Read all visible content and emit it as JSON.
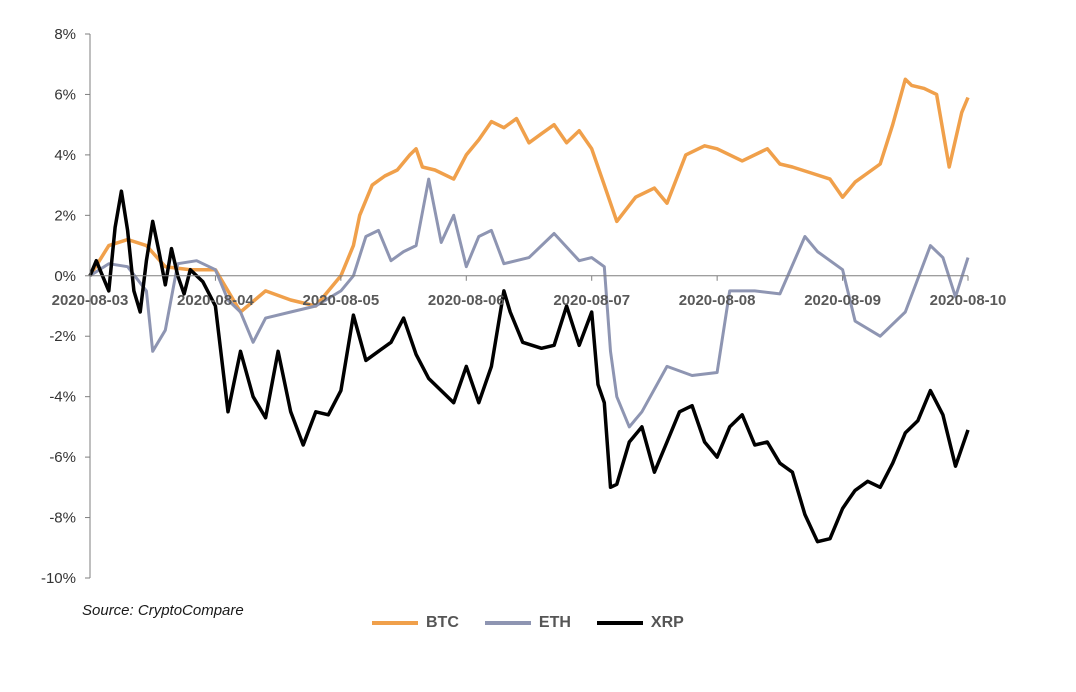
{
  "chart_data": {
    "type": "line",
    "source": "Source: CryptoCompare",
    "yticks": [
      "8%",
      "6%",
      "4%",
      "2%",
      "0%",
      "-2%",
      "-4%",
      "-6%",
      "-8%",
      "-10%"
    ],
    "ylim": [
      -10,
      8
    ],
    "x_ticks": [
      "2020-08-03",
      "2020-08-04",
      "2020-08-05",
      "2020-08-06",
      "2020-08-07",
      "2020-08-08",
      "2020-08-09",
      "2020-08-10"
    ],
    "x_range_days": [
      0,
      7
    ],
    "series": [
      {
        "name": "BTC",
        "color": "#f0a04b",
        "x": [
          0,
          0.15,
          0.3,
          0.45,
          0.6,
          0.8,
          1,
          1.2,
          1.4,
          1.6,
          1.8,
          2,
          2.1,
          2.15,
          2.25,
          2.35,
          2.45,
          2.55,
          2.6,
          2.65,
          2.75,
          2.9,
          3,
          3.1,
          3.2,
          3.3,
          3.4,
          3.5,
          3.6,
          3.7,
          3.8,
          3.9,
          4,
          4.1,
          4.2,
          4.35,
          4.5,
          4.6,
          4.75,
          4.9,
          5,
          5.2,
          5.4,
          5.5,
          5.6,
          5.75,
          5.9,
          6,
          6.1,
          6.2,
          6.3,
          6.4,
          6.5,
          6.55,
          6.65,
          6.75,
          6.85,
          6.95,
          7
        ],
        "y": [
          0,
          1.0,
          1.2,
          1.0,
          0.3,
          0.2,
          0.2,
          -1.2,
          -0.5,
          -0.8,
          -1.0,
          0,
          1.0,
          2.0,
          3.0,
          3.3,
          3.5,
          4.0,
          4.2,
          3.6,
          3.5,
          3.2,
          4.0,
          4.5,
          5.1,
          4.9,
          5.2,
          4.4,
          4.7,
          5.0,
          4.4,
          4.8,
          4.2,
          3.0,
          1.8,
          2.6,
          2.9,
          2.4,
          4.0,
          4.3,
          4.2,
          3.8,
          4.2,
          3.7,
          3.6,
          3.4,
          3.2,
          2.6,
          3.1,
          3.4,
          3.7,
          5.0,
          6.5,
          6.3,
          6.2,
          6.0,
          3.6,
          5.4,
          5.9
        ]
      },
      {
        "name": "ETH",
        "color": "#8e95b2",
        "x": [
          0,
          0.15,
          0.3,
          0.45,
          0.5,
          0.6,
          0.7,
          0.85,
          1,
          1.1,
          1.2,
          1.3,
          1.4,
          1.6,
          1.8,
          2,
          2.1,
          2.2,
          2.3,
          2.4,
          2.5,
          2.6,
          2.7,
          2.8,
          2.9,
          3,
          3.1,
          3.2,
          3.3,
          3.5,
          3.7,
          3.9,
          4,
          4.1,
          4.15,
          4.2,
          4.3,
          4.4,
          4.6,
          4.8,
          5,
          5.1,
          5.3,
          5.5,
          5.7,
          5.8,
          6,
          6.1,
          6.3,
          6.5,
          6.7,
          6.8,
          6.9,
          7
        ],
        "y": [
          0,
          0.4,
          0.3,
          -0.5,
          -2.5,
          -1.8,
          0.4,
          0.5,
          0.2,
          -0.8,
          -1.2,
          -2.2,
          -1.4,
          -1.2,
          -1.0,
          -0.5,
          0,
          1.3,
          1.5,
          0.5,
          0.8,
          1.0,
          3.2,
          1.1,
          2.0,
          0.3,
          1.3,
          1.5,
          0.4,
          0.6,
          1.4,
          0.5,
          0.6,
          0.3,
          -2.5,
          -4.0,
          -5.0,
          -4.5,
          -3.0,
          -3.3,
          -3.2,
          -0.5,
          -0.5,
          -0.6,
          1.3,
          0.8,
          0.2,
          -1.5,
          -2.0,
          -1.2,
          1.0,
          0.6,
          -0.7,
          0.6
        ]
      },
      {
        "name": "XRP",
        "color": "#000000",
        "x": [
          0,
          0.05,
          0.1,
          0.15,
          0.2,
          0.25,
          0.3,
          0.35,
          0.4,
          0.45,
          0.5,
          0.55,
          0.6,
          0.65,
          0.7,
          0.75,
          0.8,
          0.9,
          1,
          1.1,
          1.15,
          1.2,
          1.3,
          1.4,
          1.5,
          1.6,
          1.7,
          1.8,
          1.9,
          2,
          2.1,
          2.2,
          2.3,
          2.4,
          2.5,
          2.6,
          2.7,
          2.8,
          2.9,
          3,
          3.1,
          3.2,
          3.3,
          3.35,
          3.45,
          3.6,
          3.7,
          3.8,
          3.9,
          4,
          4.05,
          4.1,
          4.15,
          4.2,
          4.3,
          4.4,
          4.5,
          4.6,
          4.7,
          4.8,
          4.9,
          5,
          5.1,
          5.2,
          5.3,
          5.4,
          5.5,
          5.6,
          5.7,
          5.8,
          5.9,
          6,
          6.05,
          6.1,
          6.2,
          6.3,
          6.4,
          6.5,
          6.6,
          6.7,
          6.8,
          6.9,
          7
        ],
        "y": [
          0,
          0.5,
          0,
          -0.5,
          1.6,
          2.8,
          1.5,
          -0.5,
          -1.2,
          0.5,
          1.8,
          0.8,
          -0.3,
          0.9,
          0,
          -0.6,
          0.2,
          -0.2,
          -1.0,
          -4.5,
          -3.5,
          -2.5,
          -4.0,
          -4.7,
          -2.5,
          -4.5,
          -5.6,
          -4.5,
          -4.6,
          -3.8,
          -1.3,
          -2.8,
          -2.5,
          -2.2,
          -1.4,
          -2.6,
          -3.4,
          -3.8,
          -4.2,
          -3.0,
          -4.2,
          -3.0,
          -0.5,
          -1.2,
          -2.2,
          -2.4,
          -2.3,
          -1.0,
          -2.3,
          -1.2,
          -3.6,
          -4.2,
          -7.0,
          -6.9,
          -5.5,
          -5.0,
          -6.5,
          -5.5,
          -4.5,
          -4.3,
          -5.5,
          -6.0,
          -5.0,
          -4.6,
          -5.6,
          -5.5,
          -6.2,
          -6.5,
          -7.9,
          -8.8,
          -8.7,
          -7.7,
          -7.4,
          -7.1,
          -6.8,
          -7.0,
          -6.2,
          -5.2,
          -4.8,
          -3.8,
          -4.6,
          -6.3,
          -5.1
        ]
      }
    ]
  },
  "legend": [
    {
      "label": "BTC",
      "color": "#f0a04b"
    },
    {
      "label": "ETH",
      "color": "#8e95b2"
    },
    {
      "label": "XRP",
      "color": "#000000"
    }
  ],
  "source_text": "Source: CryptoCompare"
}
